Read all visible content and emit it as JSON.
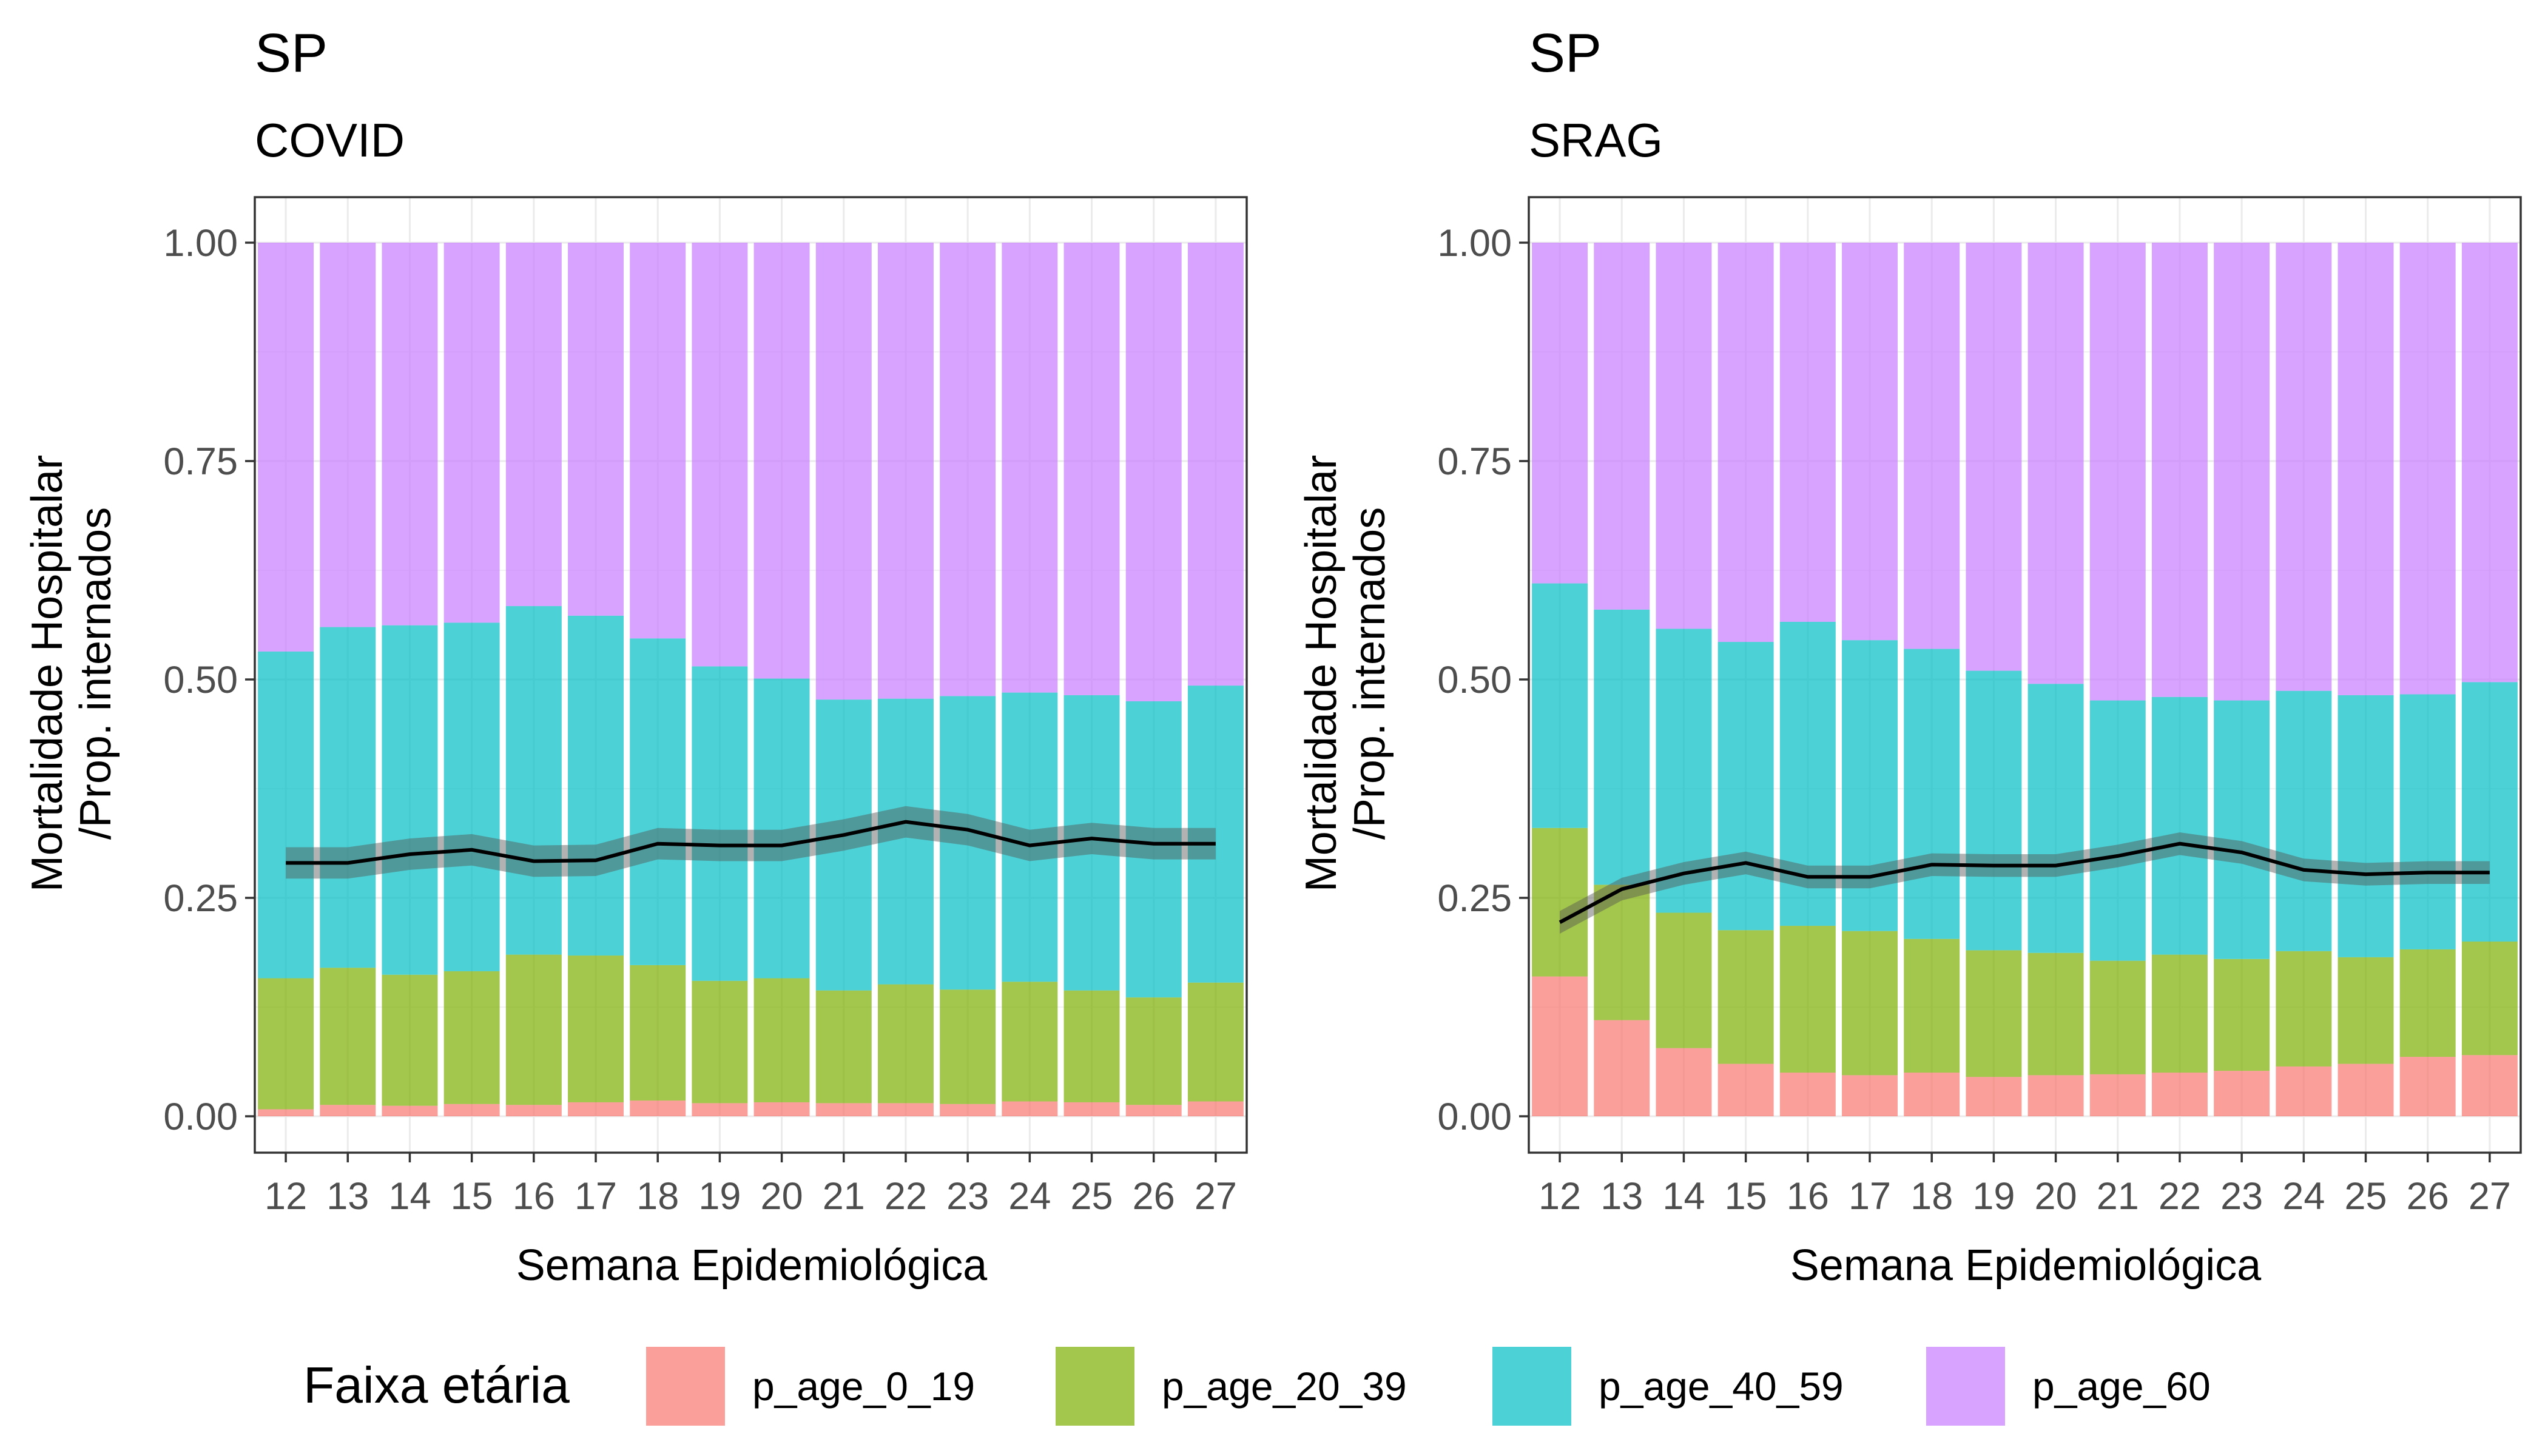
{
  "legend": {
    "title": "Faixa etária",
    "items": [
      {
        "label": "p_age_0_19",
        "color": "#F8766D"
      },
      {
        "label": "p_age_20_39",
        "color": "#7CAE00"
      },
      {
        "label": "p_age_40_59",
        "color": "#00BFC4"
      },
      {
        "label": "p_age_60",
        "color": "#C77CFF"
      }
    ]
  },
  "chart_data": [
    {
      "type": "bar",
      "stacked": true,
      "title": "SP",
      "subtitle": "COVID",
      "xlabel": "Semana Epidemiológica",
      "ylabel": [
        "Mortalidade Hospitalar",
        "/Prop. internados"
      ],
      "ylim": [
        0,
        1
      ],
      "yticks": [
        "0.00",
        "0.25",
        "0.50",
        "0.75",
        "1.00"
      ],
      "categories": [
        "12",
        "13",
        "14",
        "15",
        "16",
        "17",
        "18",
        "19",
        "20",
        "21",
        "22",
        "23",
        "24",
        "25",
        "26",
        "27"
      ],
      "series": [
        {
          "name": "p_age_0_19",
          "values": [
            0.008,
            0.013,
            0.012,
            0.014,
            0.013,
            0.016,
            0.018,
            0.015,
            0.016,
            0.015,
            0.015,
            0.014,
            0.017,
            0.016,
            0.013,
            0.017
          ]
        },
        {
          "name": "p_age_20_39",
          "values": [
            0.15,
            0.157,
            0.15,
            0.152,
            0.172,
            0.168,
            0.155,
            0.14,
            0.142,
            0.129,
            0.136,
            0.131,
            0.137,
            0.128,
            0.123,
            0.136
          ]
        },
        {
          "name": "p_age_40_59",
          "values": [
            0.374,
            0.39,
            0.4,
            0.399,
            0.399,
            0.389,
            0.374,
            0.36,
            0.343,
            0.333,
            0.327,
            0.336,
            0.331,
            0.338,
            0.339,
            0.34
          ]
        },
        {
          "name": "p_age_60",
          "values": [
            0.468,
            0.44,
            0.438,
            0.435,
            0.416,
            0.427,
            0.453,
            0.485,
            0.499,
            0.523,
            0.522,
            0.519,
            0.515,
            0.518,
            0.525,
            0.507
          ]
        }
      ],
      "line": {
        "values": [
          0.29,
          0.29,
          0.3,
          0.305,
          0.292,
          0.293,
          0.312,
          0.31,
          0.31,
          0.322,
          0.337,
          0.328,
          0.31,
          0.318,
          0.312,
          0.312
        ],
        "band": 0.018
      }
    },
    {
      "type": "bar",
      "stacked": true,
      "title": "SP",
      "subtitle": "SRAG",
      "xlabel": "Semana Epidemiológica",
      "ylabel": [
        "Mortalidade Hospitalar",
        "/Prop. internados"
      ],
      "ylim": [
        0,
        1
      ],
      "yticks": [
        "0.00",
        "0.25",
        "0.50",
        "0.75",
        "1.00"
      ],
      "categories": [
        "12",
        "13",
        "14",
        "15",
        "16",
        "17",
        "18",
        "19",
        "20",
        "21",
        "22",
        "23",
        "24",
        "25",
        "26",
        "27"
      ],
      "series": [
        {
          "name": "p_age_0_19",
          "values": [
            0.16,
            0.11,
            0.078,
            0.06,
            0.05,
            0.047,
            0.05,
            0.045,
            0.047,
            0.048,
            0.05,
            0.052,
            0.057,
            0.06,
            0.068,
            0.07
          ]
        },
        {
          "name": "p_age_20_39",
          "values": [
            0.17,
            0.155,
            0.155,
            0.153,
            0.168,
            0.165,
            0.153,
            0.145,
            0.14,
            0.13,
            0.135,
            0.128,
            0.132,
            0.122,
            0.123,
            0.13
          ]
        },
        {
          "name": "p_age_40_59",
          "values": [
            0.28,
            0.315,
            0.325,
            0.33,
            0.348,
            0.333,
            0.332,
            0.32,
            0.308,
            0.298,
            0.295,
            0.296,
            0.298,
            0.3,
            0.292,
            0.297
          ]
        },
        {
          "name": "p_age_60",
          "values": [
            0.39,
            0.42,
            0.442,
            0.457,
            0.434,
            0.455,
            0.465,
            0.49,
            0.505,
            0.524,
            0.52,
            0.524,
            0.513,
            0.518,
            0.517,
            0.503
          ]
        }
      ],
      "line": {
        "values": [
          0.222,
          0.26,
          0.278,
          0.29,
          0.274,
          0.274,
          0.288,
          0.287,
          0.287,
          0.298,
          0.312,
          0.302,
          0.282,
          0.277,
          0.279,
          0.279
        ],
        "band": 0.013
      }
    }
  ]
}
